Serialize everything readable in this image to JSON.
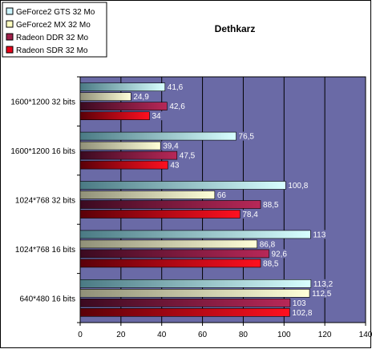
{
  "chart_data": {
    "type": "bar",
    "orientation": "horizontal",
    "title": "Dethkarz",
    "categories": [
      "1600*1200 32 bits",
      "1600*1200 16 bits",
      "1024*768 32 bits",
      "1024*768 16 bits",
      "640*480 16 bits"
    ],
    "series": [
      {
        "name": "GeForce2 GTS 32 Mo",
        "values": [
          41.6,
          76.5,
          100.8,
          113,
          113.2
        ],
        "value_labels": [
          "41,6",
          "76,5",
          "100,8",
          "113",
          "113,2"
        ],
        "color": "#ccf5ff"
      },
      {
        "name": "GeForce2 MX 32 Mo",
        "values": [
          24.9,
          39.4,
          66,
          86.8,
          112.5
        ],
        "value_labels": [
          "24,9",
          "39,4",
          "66",
          "86,8",
          "112,5"
        ],
        "color": "#ffffc0"
      },
      {
        "name": "Radeon DDR 32 Mo",
        "values": [
          42.6,
          47.5,
          88.5,
          92.6,
          103
        ],
        "value_labels": [
          "42,6",
          "47,5",
          "88,5",
          "92,6",
          "103"
        ],
        "color": "#a0204a"
      },
      {
        "name": "Radeon SDR 32 Mo",
        "values": [
          34,
          43,
          78.4,
          88.5,
          102.8
        ],
        "value_labels": [
          "34",
          "43",
          "78,4",
          "88,5",
          "102,8"
        ],
        "color": "#e8001a"
      }
    ],
    "xlim": [
      0,
      140
    ],
    "xticks": [
      0,
      20,
      40,
      60,
      80,
      100,
      120,
      140
    ],
    "plot_background": "#6a6aa6",
    "grid": true,
    "legend_position": "top-left",
    "xlabel": "",
    "ylabel": ""
  }
}
